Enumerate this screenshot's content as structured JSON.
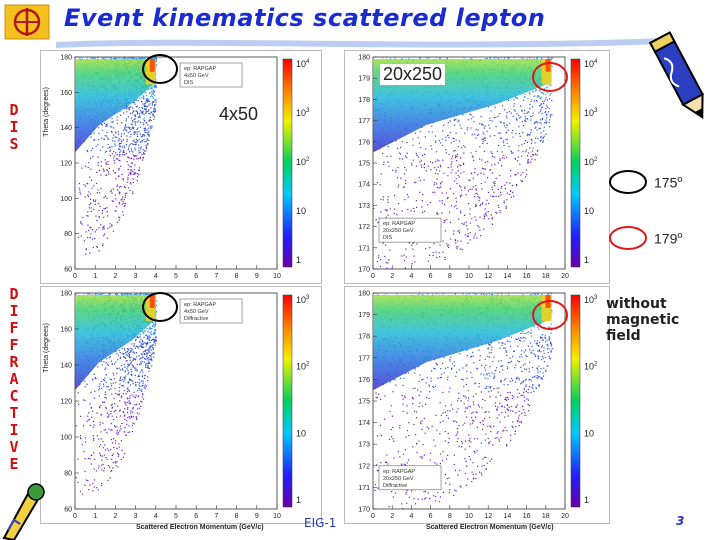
{
  "slide": {
    "title": "Event kinematics scattered lepton",
    "left_label_top": [
      "D",
      "I",
      "S"
    ],
    "left_label_bottom": [
      "D",
      "I",
      "F",
      "F",
      "R",
      "A",
      "C",
      "T",
      "I",
      "V",
      "E"
    ],
    "footer": "EIG-1",
    "page_number": "3",
    "no_field_note": [
      "without",
      "magnetic",
      "field"
    ]
  },
  "legend_keys": [
    {
      "label": "175",
      "sup": "o",
      "color": "#000000"
    },
    {
      "label": "179",
      "sup": "o",
      "color": "#e01818"
    }
  ],
  "energy_labels": {
    "top_left": "4x50",
    "top_right": "20x250"
  },
  "colors": {
    "title": "#1a2bd0",
    "label_red": "#d01010",
    "footer_blue": "#2a36c0"
  },
  "panels": [
    {
      "id": "dis-4x50",
      "y_axis_title": "Theta (degrees)",
      "y_ticks": [
        "180",
        "160",
        "140",
        "120",
        "100",
        "80",
        "60"
      ],
      "x_ticks": [
        "0",
        "1",
        "2",
        "3",
        "4",
        "5",
        "6",
        "7",
        "8",
        "9",
        "10"
      ],
      "x_axis_title": "",
      "legend_lines": [
        "ep: RAPGAP",
        "4x50 GeV",
        "DIS"
      ],
      "colorbar_ticks": [
        {
          "base": "10",
          "exp": "4"
        },
        {
          "base": "10",
          "exp": "3"
        },
        {
          "base": "10",
          "exp": "2"
        },
        {
          "base": "10",
          "exp": ""
        },
        {
          "base": "1",
          "exp": ""
        }
      ]
    },
    {
      "id": "dis-20x250",
      "y_axis_title": "",
      "y_ticks": [
        "180",
        "179",
        "178",
        "177",
        "176",
        "175",
        "174",
        "173",
        "172",
        "171",
        "170"
      ],
      "x_ticks": [
        "0",
        "2",
        "4",
        "6",
        "8",
        "10",
        "12",
        "14",
        "16",
        "18",
        "20"
      ],
      "x_axis_title": "",
      "legend_lines": [
        "ep: RAPGAP",
        "20x250 GeV",
        "DIS"
      ],
      "colorbar_ticks": [
        {
          "base": "10",
          "exp": "4"
        },
        {
          "base": "10",
          "exp": "3"
        },
        {
          "base": "10",
          "exp": "2"
        },
        {
          "base": "10",
          "exp": ""
        },
        {
          "base": "1",
          "exp": ""
        }
      ]
    },
    {
      "id": "diff-4x50",
      "y_axis_title": "Theta (degrees)",
      "y_ticks": [
        "180",
        "160",
        "140",
        "120",
        "100",
        "80",
        "60"
      ],
      "x_ticks": [
        "0",
        "1",
        "2",
        "3",
        "4",
        "5",
        "6",
        "7",
        "8",
        "9",
        "10"
      ],
      "x_axis_title": "Scattered Electron Momentum (GeV/c)",
      "legend_lines": [
        "ep: RAPGAP",
        "4x50 GeV",
        "Diffractive"
      ],
      "colorbar_ticks": [
        {
          "base": "10",
          "exp": "3"
        },
        {
          "base": "10",
          "exp": "2"
        },
        {
          "base": "10",
          "exp": ""
        },
        {
          "base": "1",
          "exp": ""
        }
      ]
    },
    {
      "id": "diff-20x250",
      "y_axis_title": "",
      "y_ticks": [
        "180",
        "179",
        "178",
        "177",
        "176",
        "175",
        "174",
        "173",
        "172",
        "171",
        "170"
      ],
      "x_ticks": [
        "0",
        "2",
        "4",
        "6",
        "8",
        "10",
        "12",
        "14",
        "16",
        "18",
        "20"
      ],
      "x_axis_title": "Scattered Electron Momentum (GeV/c)",
      "legend_lines": [
        "ep: RAPGAP",
        "20x250 GeV",
        "Diffractive"
      ],
      "colorbar_ticks": [
        {
          "base": "10",
          "exp": "3"
        },
        {
          "base": "10",
          "exp": "2"
        },
        {
          "base": "10",
          "exp": ""
        },
        {
          "base": "1",
          "exp": ""
        }
      ]
    }
  ]
}
